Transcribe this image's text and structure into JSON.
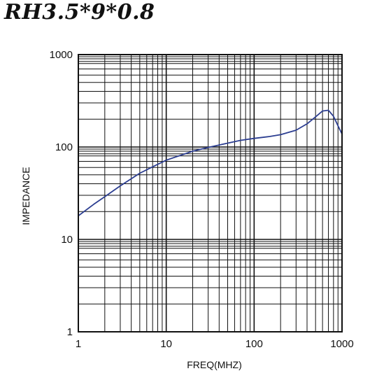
{
  "chart_data": {
    "type": "line",
    "title": "RH3.5*9*0.8",
    "xlabel": "FREQ(MHZ)",
    "ylabel": "IMPEDANCE",
    "x_scale": "log",
    "y_scale": "log",
    "xlim": [
      1,
      1000
    ],
    "ylim": [
      1,
      1000
    ],
    "x_ticks": [
      "1",
      "10",
      "100",
      "1000"
    ],
    "y_ticks": [
      "1",
      "10",
      "100",
      "1000"
    ],
    "grid": true,
    "legend": "none",
    "colors": {
      "curve": "#2c3e91",
      "grid": "#111111"
    },
    "series": [
      {
        "x": [
          1,
          1.5,
          2,
          3,
          5,
          7,
          10,
          20,
          30,
          50,
          70,
          100,
          150,
          200,
          300,
          400,
          500,
          600,
          700,
          800,
          900,
          1000
        ],
        "y": [
          18,
          24,
          29,
          38,
          52,
          61,
          72,
          90,
          99,
          110,
          118,
          124,
          130,
          136,
          152,
          178,
          212,
          245,
          250,
          215,
          170,
          138
        ]
      }
    ]
  }
}
